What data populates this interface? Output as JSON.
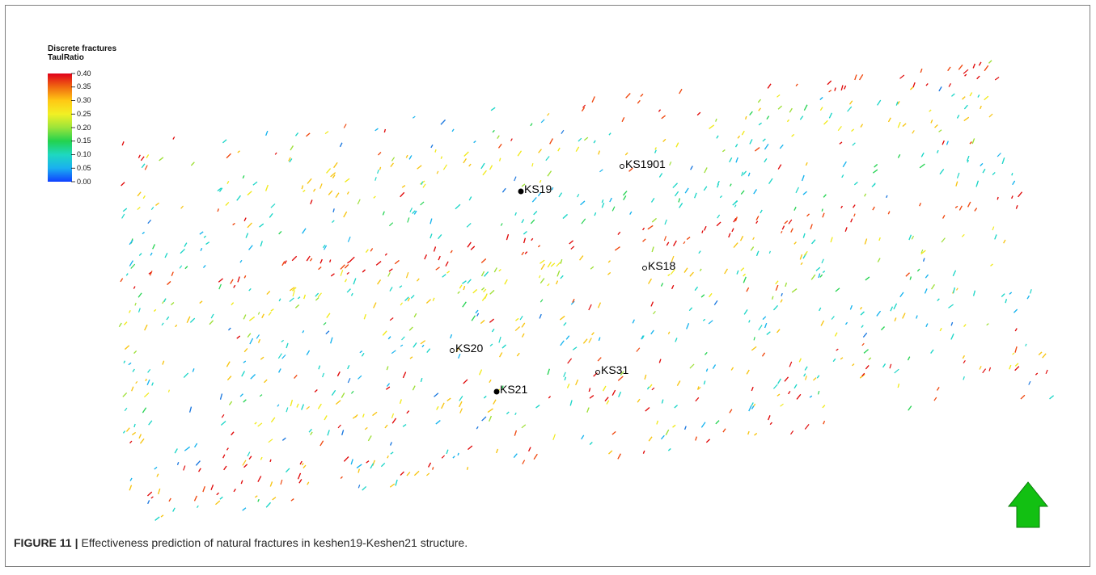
{
  "legend": {
    "title_line1": "Discrete fractures",
    "title_line2": "TaulRatio",
    "ticks": [
      "0.40",
      "0.35",
      "0.30",
      "0.25",
      "0.20",
      "0.15",
      "0.10",
      "0.05",
      "0.00"
    ],
    "colors_top_to_bottom": [
      "#e0001a",
      "#f06a10",
      "#ffc814",
      "#f2f024",
      "#9be43a",
      "#22d24e",
      "#1ed8c0",
      "#1ab0f0",
      "#1040ff"
    ]
  },
  "wells": [
    {
      "name": "KS1901",
      "marker": "open"
    },
    {
      "name": "KS19",
      "marker": "filled"
    },
    {
      "name": "KS18",
      "marker": "open"
    },
    {
      "name": "KS20",
      "marker": "open"
    },
    {
      "name": "KS31",
      "marker": "open"
    },
    {
      "name": "KS21",
      "marker": "filled"
    }
  ],
  "north_arrow": {
    "icon": "north-arrow-icon",
    "color": "#12c012"
  },
  "caption": {
    "figure_label": "FIGURE 11",
    "separator": "|",
    "text": "Effectiveness prediction of natural fractures in keshen19-Keshen21 structure."
  }
}
